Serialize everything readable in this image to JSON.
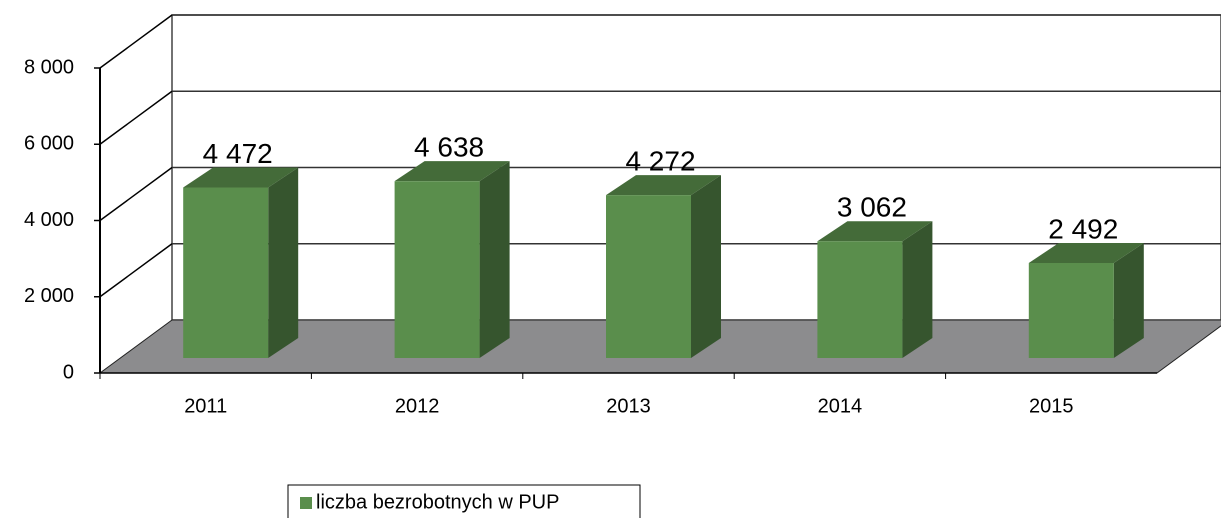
{
  "chart_data": {
    "type": "bar3d",
    "categories": [
      "2011",
      "2012",
      "2013",
      "2014",
      "2015"
    ],
    "series": [
      {
        "name": "liczba bezrobotnych w PUP",
        "color": "#5a8e4c",
        "values": [
          4472,
          4638,
          4272,
          3062,
          2492
        ],
        "value_labels": [
          "4 472",
          "4 638",
          "4 272",
          "3 062",
          "2 492"
        ]
      }
    ],
    "ylim": [
      0,
      8000
    ],
    "yticks": [
      0,
      {
        "value": 2000,
        "label": "2 000"
      },
      {
        "value": 4000,
        "label": "4 000"
      },
      {
        "value": 6000,
        "label": "6 000"
      },
      {
        "value": 8000,
        "label": "8 000"
      }
    ],
    "grid": true,
    "legend": "bottom"
  }
}
